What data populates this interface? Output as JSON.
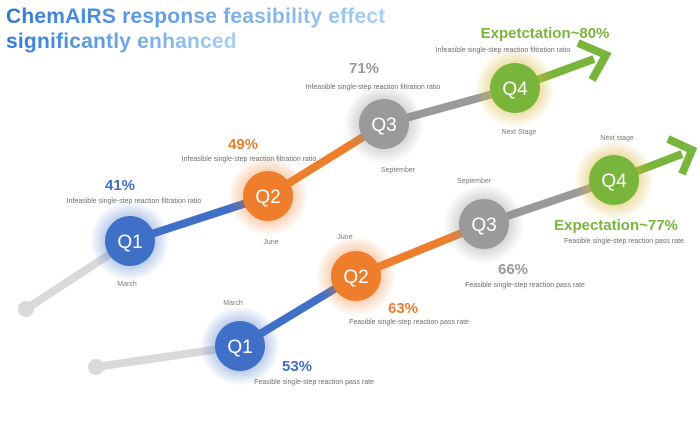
{
  "title": {
    "line1": "ChemAIRS response feasibility effect",
    "line2": "significantly enhanced",
    "color_start": "#2f7ad8",
    "color_end": "#a9d0f3"
  },
  "colors": {
    "q1": "#3f6fc6",
    "q2": "#ee7d2c",
    "q3": "#9a9a9a",
    "q4": "#79b53b",
    "track": "#d9d9d9",
    "halo_q4": "#e3d089"
  },
  "upper_track": {
    "nodes": [
      {
        "label": "Q1",
        "month": "March"
      },
      {
        "label": "Q2",
        "month": "June"
      },
      {
        "label": "Q3",
        "month": "September"
      },
      {
        "label": "Q4",
        "month": "Next Stage"
      }
    ],
    "values": [
      {
        "value": "41%",
        "desc": "Infeasible single-step reaction filtration ratio"
      },
      {
        "value": "49%",
        "desc": "Infeasible single-step reaction filtration ratio"
      },
      {
        "value": "71%",
        "desc": "Infeasible single-step reaction filtration ratio"
      },
      {
        "value": "Expetctation~80%",
        "desc": "Infeasible single-step reaction filtration ratio"
      }
    ]
  },
  "lower_track": {
    "nodes": [
      {
        "label": "Q1",
        "month": "March"
      },
      {
        "label": "Q2",
        "month": "June"
      },
      {
        "label": "Q3",
        "month": "September"
      },
      {
        "label": "Q4",
        "month": "Next stage"
      }
    ],
    "values": [
      {
        "value": "53%",
        "desc": "Feasible single-step reaction pass rate"
      },
      {
        "value": "63%",
        "desc": "Feasible single-step reaction pass rate"
      },
      {
        "value": "66%",
        "desc": "Feasible single-step reaction pass rate"
      },
      {
        "value": "Expectation~77%",
        "desc": "Feasible single-step reaction pass rate"
      }
    ]
  }
}
